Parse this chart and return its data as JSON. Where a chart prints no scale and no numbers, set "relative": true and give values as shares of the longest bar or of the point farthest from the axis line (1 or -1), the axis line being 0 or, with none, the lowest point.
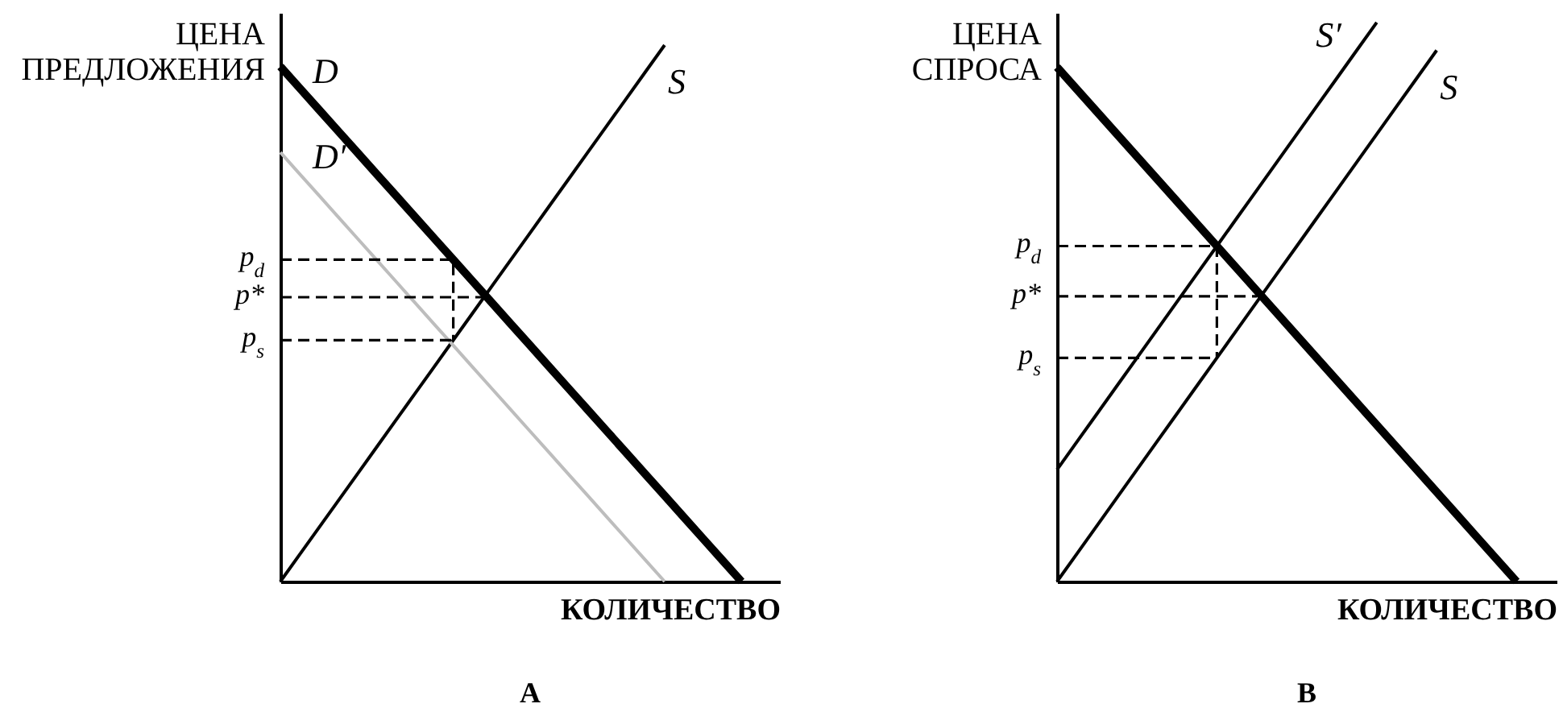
{
  "chart_data": [
    {
      "type": "line",
      "title": "A",
      "xlabel": "КОЛИЧЕСТВО",
      "ylabel": "ЦЕНА ПРЕДЛОЖЕНИЯ",
      "relative": true,
      "categories": [
        null,
        null,
        null,
        null,
        null,
        null,
        null,
        null,
        null,
        null,
        null,
        null,
        null,
        null,
        null,
        null,
        null,
        null,
        null,
        null,
        null,
        null,
        null,
        null,
        null,
        null,
        null
      ],
      "series": [
        {
          "name": "D",
          "color": "#000000",
          "values": [
            0.96,
            0.92,
            0.88,
            0.84,
            0.8,
            0.76,
            0.72,
            0.68,
            0.64,
            0.6,
            0.56,
            0.52,
            0.48,
            0.44,
            0.4,
            0.36,
            0.32,
            0.28,
            0.24,
            0.2,
            0.16,
            0.12,
            0.08,
            0.04,
            0,
            null,
            null
          ]
        },
        {
          "name": "S",
          "color": "#000000",
          "values": [
            0,
            0.05,
            0.1,
            0.15,
            0.2,
            0.25,
            0.3,
            0.35,
            0.4,
            0.45,
            0.5,
            0.55,
            0.6,
            0.65,
            0.7,
            0.75,
            0.8,
            0.85,
            0.9,
            0.95,
            1,
            null,
            null,
            null,
            null,
            null,
            null
          ]
        },
        {
          "name": "D′",
          "color": "#bdbdbd",
          "values": [
            0.8,
            0.76,
            0.72,
            0.68,
            0.64,
            0.6,
            0.56,
            0.52,
            0.48,
            0.44,
            0.4,
            0.36,
            0.32,
            0.28,
            0.24,
            0.2,
            0.16,
            0.12,
            0.08,
            0.04,
            0,
            null,
            null,
            null,
            null,
            null,
            null
          ]
        },
        {
          "name": "p$_{d}$",
          "type": "step",
          "color": "#000000",
          "line_style": "dashed",
          "values": [
            0.6,
            0.6,
            0.6,
            0.6,
            0.6,
            0.6,
            0.6,
            0.6,
            0.6,
            0.45,
            null,
            null,
            null,
            null,
            null,
            null,
            null,
            null,
            null,
            null,
            null,
            null,
            null,
            null,
            null,
            null,
            null
          ]
        },
        {
          "name": "p*",
          "color": "#000000",
          "line_style": "dashed",
          "values": [
            0.53,
            0.53,
            0.53,
            0.53,
            0.53,
            0.53,
            0.53,
            0.53,
            0.53,
            0.53,
            0.53,
            0.53,
            null,
            null,
            null,
            null,
            null,
            null,
            null,
            null,
            null,
            null,
            null,
            null,
            null,
            null,
            null
          ]
        },
        {
          "name": "p$_{s}$",
          "color": "#000000",
          "line_style": "dashed",
          "values": [
            0.45,
            0.45,
            0.45,
            0.45,
            0.45,
            0.45,
            0.45,
            0.45,
            0.45,
            0.45,
            null,
            null,
            null,
            null,
            null,
            null,
            null,
            null,
            null,
            null,
            null,
            null,
            null,
            null,
            null,
            null,
            null
          ]
        }
      ]
    },
    {
      "type": "line",
      "title": "B",
      "xlabel": "КОЛИЧЕСТВО",
      "ylabel": "ЦЕНА СПРОСА",
      "relative": true,
      "categories": [
        null,
        null,
        null,
        null,
        null,
        null,
        null,
        null,
        null,
        null,
        null,
        null,
        null,
        null,
        null,
        null,
        null,
        null,
        null,
        null,
        null,
        null,
        null,
        null,
        null,
        null
      ],
      "series": [
        {
          "color": "#000000",
          "values": [
            0.92,
            0.88,
            0.84,
            0.8,
            0.76,
            0.72,
            0.68,
            0.64,
            0.6,
            0.56,
            0.52,
            0.48,
            0.44,
            0.4,
            0.36,
            0.32,
            0.28,
            0.24,
            0.2,
            0.16,
            0.12,
            0.08,
            0.04,
            0,
            null,
            null
          ]
        },
        {
          "name": "S′",
          "color": "#000000",
          "values": [
            0.2,
            0.25,
            0.3,
            0.35,
            0.4,
            0.45,
            0.5,
            0.55,
            0.6,
            0.65,
            0.7,
            0.75,
            0.8,
            0.85,
            0.9,
            0.95,
            1,
            null,
            null,
            null,
            null,
            null,
            null,
            null,
            null,
            null
          ]
        },
        {
          "name": "S",
          "color": "#000000",
          "values": [
            0,
            0.05,
            0.1,
            0.15,
            0.2,
            0.25,
            0.3,
            0.35,
            0.4,
            0.45,
            0.5,
            0.55,
            0.6,
            0.65,
            0.7,
            0.75,
            0.8,
            0.85,
            0.9,
            0.95,
            null,
            null,
            null,
            null,
            null,
            null
          ]
        },
        {
          "name": "p$_{d}$",
          "type": "step",
          "color": "#000000",
          "line_style": "dashed",
          "values": [
            0.6,
            0.6,
            0.6,
            0.6,
            0.6,
            0.6,
            0.6,
            0.6,
            0.4,
            null,
            null,
            null,
            null,
            null,
            null,
            null,
            null,
            null,
            null,
            null,
            null,
            null,
            null,
            null,
            null,
            null
          ]
        },
        {
          "name": "p*",
          "color": "#000000",
          "line_style": "dashed",
          "values": [
            0.51,
            0.51,
            0.51,
            0.51,
            0.51,
            0.51,
            0.51,
            0.51,
            0.51,
            0.51,
            0.51,
            null,
            null,
            null,
            null,
            null,
            null,
            null,
            null,
            null,
            null,
            null,
            null,
            null,
            null,
            null
          ]
        },
        {
          "name": "p$_{s}$",
          "color": "#000000",
          "line_style": "dashed",
          "values": [
            0.4,
            0.4,
            0.4,
            0.4,
            0.4,
            0.4,
            0.4,
            0.4,
            0.4,
            null,
            null,
            null,
            null,
            null,
            null,
            null,
            null,
            null,
            null,
            null,
            null,
            null,
            null,
            null,
            null,
            null
          ]
        }
      ]
    }
  ]
}
